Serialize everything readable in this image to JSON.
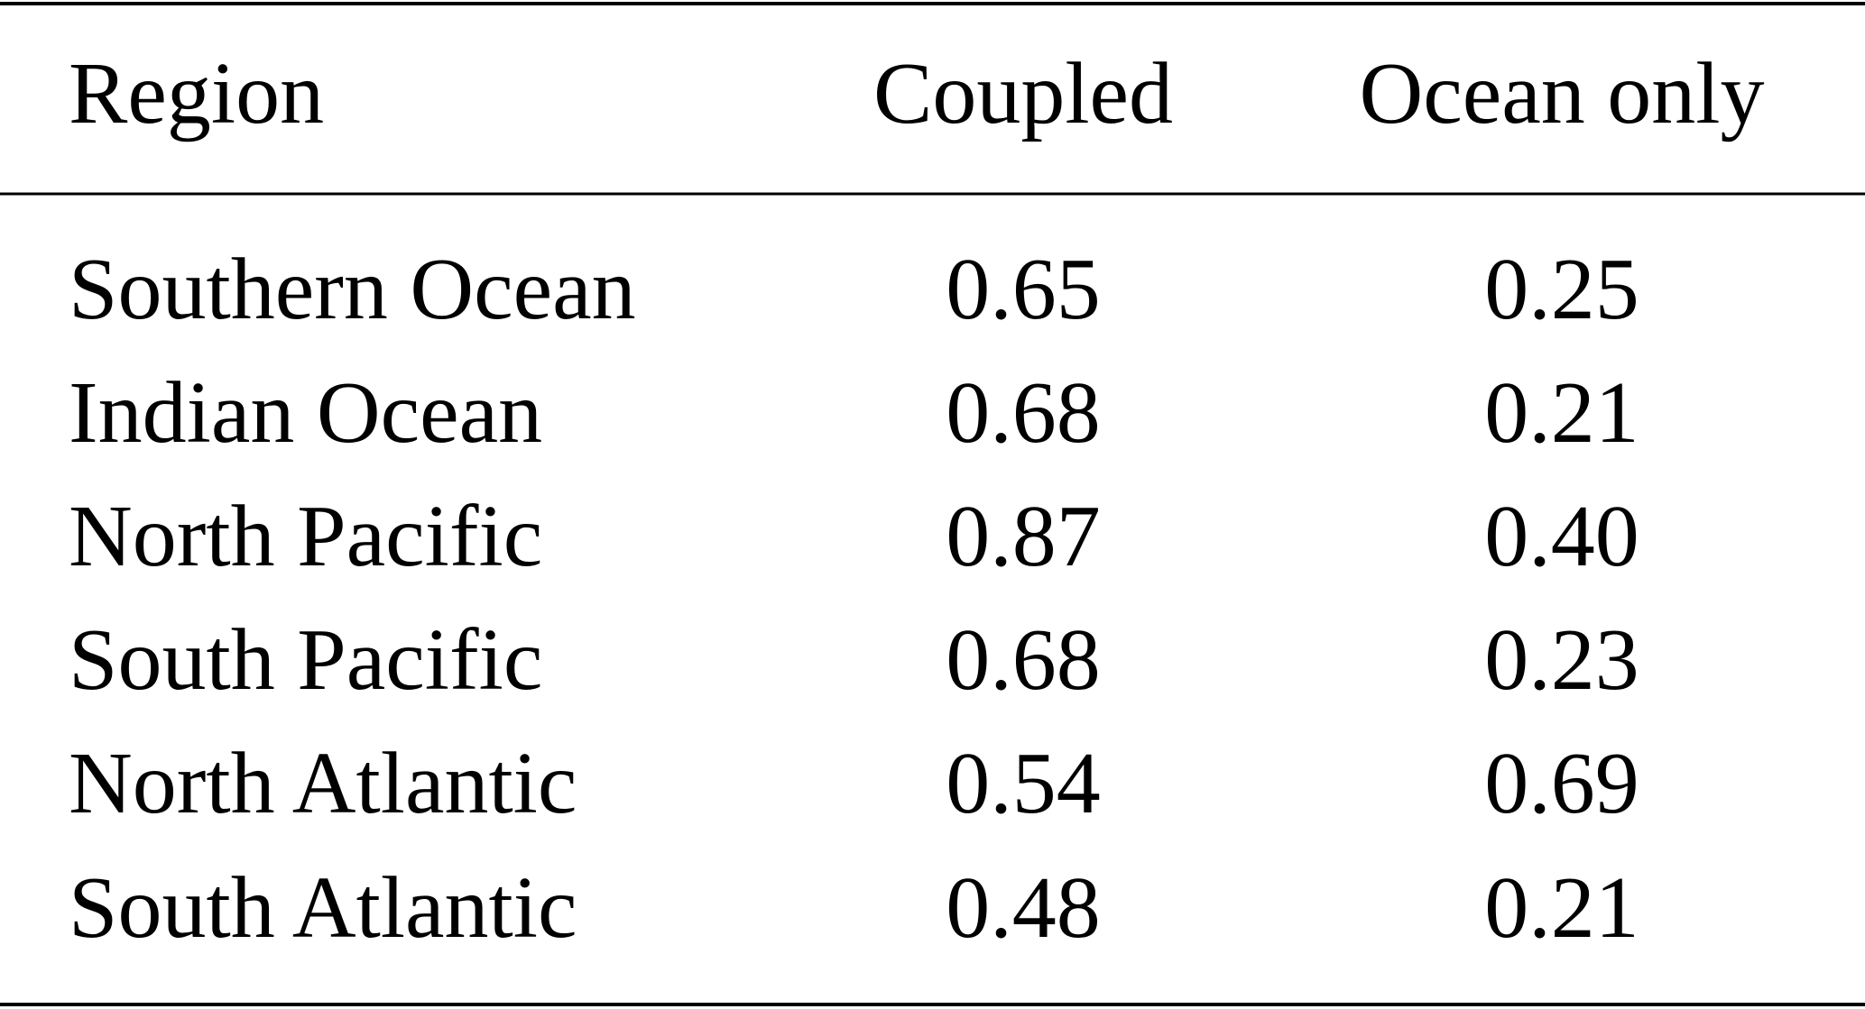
{
  "table": {
    "header": [
      "Region",
      "Coupled",
      "Ocean only"
    ],
    "rows": [
      [
        "Southern Ocean",
        "0.65",
        "0.25"
      ],
      [
        "Indian Ocean",
        "0.68",
        "0.21"
      ],
      [
        "North Pacific",
        "0.87",
        "0.40"
      ],
      [
        "South Pacific",
        "0.68",
        "0.23"
      ],
      [
        "North Atlantic",
        "0.54",
        "0.69"
      ],
      [
        "South Atlantic",
        "0.48",
        "0.21"
      ]
    ]
  }
}
